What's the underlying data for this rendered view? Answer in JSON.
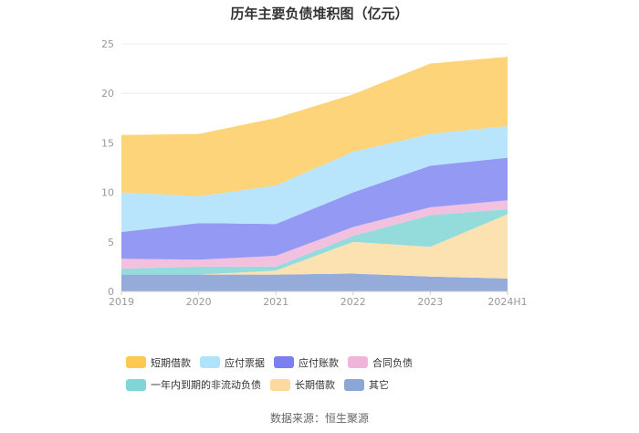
{
  "chart_data": {
    "type": "area",
    "stacked": true,
    "title": "历年主要负债堆积图（亿元）",
    "categories": [
      "2019",
      "2020",
      "2021",
      "2022",
      "2023",
      "2024H1"
    ],
    "ylim": [
      0,
      25
    ],
    "yticks": [
      0,
      5,
      10,
      15,
      20,
      25
    ],
    "grid": true,
    "legend_position": "bottom",
    "series": [
      {
        "name": "其它",
        "color": "#8fa8d8",
        "values": [
          1.7,
          1.7,
          1.7,
          1.8,
          1.5,
          1.3
        ]
      },
      {
        "name": "长期借款",
        "color": "#fde0ad",
        "values": [
          0.0,
          0.0,
          0.4,
          3.2,
          3.0,
          6.5
        ]
      },
      {
        "name": "一年内到期的非流动负债",
        "color": "#8ed9da",
        "values": [
          0.6,
          0.8,
          0.4,
          0.6,
          3.2,
          0.5
        ]
      },
      {
        "name": "合同负债",
        "color": "#f0bedd",
        "values": [
          1.0,
          0.7,
          1.1,
          0.9,
          0.8,
          0.9
        ]
      },
      {
        "name": "应付账款",
        "color": "#8e94f2",
        "values": [
          2.7,
          3.7,
          3.2,
          3.5,
          4.2,
          4.3
        ]
      },
      {
        "name": "应付票据",
        "color": "#b4e4fb",
        "values": [
          4.0,
          2.7,
          3.9,
          4.1,
          3.2,
          3.2
        ]
      },
      {
        "name": "短期借款",
        "color": "#fdd272",
        "values": [
          5.8,
          6.3,
          6.8,
          5.8,
          7.1,
          7.0
        ]
      }
    ],
    "legend_order": [
      "短期借款",
      "应付票据",
      "应付账款",
      "合同负债",
      "一年内到期的非流动负债",
      "长期借款",
      "其它"
    ]
  },
  "legend_colors": {
    "短期借款": "#fdc94f",
    "应付票据": "#aee3fb",
    "应付账款": "#7b7ff0",
    "合同负债": "#efb6da",
    "一年内到期的非流动负债": "#80d6d6",
    "长期借款": "#fdd9a0",
    "其它": "#8aa6d6"
  },
  "source": "数据来源：恒生聚源"
}
